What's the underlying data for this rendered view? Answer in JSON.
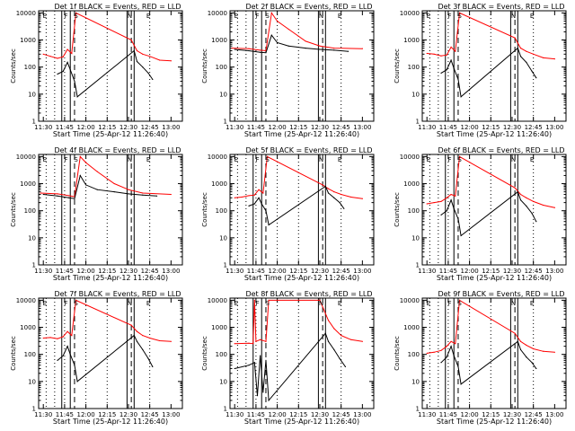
{
  "colors": {
    "events": "#000000",
    "lld": "#ff0000",
    "axes": "#000000"
  },
  "common": {
    "xlabel": "Start Time (25-Apr-12 11:26:40)",
    "ylabel": "Counts/sec",
    "x_ticks": [
      "11:30",
      "11:45",
      "12:00",
      "12:15",
      "12:30",
      "12:45",
      "13:00"
    ],
    "y_ticks": [
      "1",
      "10",
      "100",
      "1000",
      "10000"
    ],
    "xlim_minutes_after_1130": [
      -3.3,
      98
    ],
    "ylim": [
      1,
      12000
    ],
    "y_scale": "log",
    "solid_markers": [
      "11:43",
      "11:49",
      "12:29",
      "12:34"
    ],
    "dashed_markers": [
      "11:52",
      "12:32"
    ],
    "dotted_markers": [
      "11:32",
      "11:38",
      "11:45",
      "12:00",
      "12:15",
      "12:45"
    ],
    "interval_letters": [
      {
        "label": "E",
        "x": "11:31"
      },
      {
        "label": "F",
        "x": "11:46"
      },
      {
        "label": "S",
        "x": "11:53"
      },
      {
        "label": "N",
        "x": "12:31"
      },
      {
        "label": "E",
        "x": "12:44"
      }
    ]
  },
  "chart_data": [
    {
      "type": "line",
      "title": "Det 1f BLACK = Events, RED = LLD",
      "xlabel": "Start Time (25-Apr-12 11:26:40)",
      "ylabel": "Counts/sec",
      "y_scale": "log",
      "series": [
        {
          "name": "BLACK = Events",
          "x": [
            "11:40",
            "11:44",
            "11:47",
            "11:49",
            "11:52",
            "11:54",
            "12:34",
            "12:36",
            "12:40",
            "12:44",
            "12:47"
          ],
          "values": [
            55,
            70,
            150,
            80,
            30,
            8,
            400,
            160,
            100,
            60,
            35
          ]
        },
        {
          "name": "RED = LLD",
          "x": [
            "11:30",
            "11:35",
            "11:40",
            "11:44",
            "11:47",
            "11:50",
            "11:53",
            "12:32",
            "12:36",
            "12:40",
            "12:45",
            "12:52",
            "13:00"
          ],
          "values": [
            300,
            250,
            210,
            240,
            450,
            320,
            10000,
            1000,
            400,
            300,
            250,
            180,
            170
          ]
        }
      ]
    },
    {
      "type": "line",
      "title": "Det 2f BLACK = Events, RED = LLD",
      "xlabel": "Start Time (25-Apr-12 11:26:40)",
      "ylabel": "Counts/sec",
      "y_scale": "log",
      "series": [
        {
          "name": "BLACK = Events",
          "x": [
            "11:30",
            "11:40",
            "11:48",
            "11:52",
            "11:56",
            "12:00",
            "12:08",
            "12:20",
            "12:30",
            "12:40",
            "12:50"
          ],
          "values": [
            450,
            400,
            350,
            340,
            1500,
            800,
            600,
            500,
            450,
            420,
            380
          ]
        },
        {
          "name": "RED = LLD",
          "x": [
            "11:28",
            "11:40",
            "11:48",
            "11:52",
            "11:56",
            "12:00",
            "12:08",
            "12:20",
            "12:30",
            "12:40",
            "13:00"
          ],
          "values": [
            500,
            480,
            420,
            400,
            10000,
            5000,
            2500,
            900,
            600,
            500,
            480
          ]
        }
      ]
    },
    {
      "type": "line",
      "title": "Det 3f BLACK = Events, RED = LLD",
      "xlabel": "Start Time (25-Apr-12 11:26:40)",
      "ylabel": "Counts/sec",
      "y_scale": "log",
      "series": [
        {
          "name": "BLACK = Events",
          "x": [
            "11:40",
            "11:44",
            "11:47",
            "11:49",
            "11:52",
            "11:54",
            "12:34",
            "12:36",
            "12:40",
            "12:44",
            "12:47"
          ],
          "values": [
            60,
            80,
            180,
            90,
            35,
            8,
            500,
            250,
            150,
            70,
            40
          ]
        },
        {
          "name": "RED = LLD",
          "x": [
            "11:30",
            "11:35",
            "11:40",
            "11:44",
            "11:47",
            "11:50",
            "11:53",
            "12:32",
            "12:36",
            "12:40",
            "12:45",
            "12:52",
            "13:00"
          ],
          "values": [
            320,
            300,
            260,
            280,
            550,
            380,
            10000,
            1200,
            500,
            380,
            300,
            220,
            200
          ]
        }
      ]
    },
    {
      "type": "line",
      "title": "Det 4f BLACK = Events, RED = LLD",
      "xlabel": "Start Time (25-Apr-12 11:26:40)",
      "ylabel": "Counts/sec",
      "y_scale": "log",
      "series": [
        {
          "name": "BLACK = Events",
          "x": [
            "11:30",
            "11:40",
            "11:48",
            "11:52",
            "11:56",
            "12:00",
            "12:08",
            "12:20",
            "12:30",
            "12:40",
            "12:50"
          ],
          "values": [
            400,
            350,
            300,
            280,
            2000,
            900,
            600,
            500,
            420,
            380,
            350
          ]
        },
        {
          "name": "RED = LLD",
          "x": [
            "11:28",
            "11:40",
            "11:48",
            "11:52",
            "11:56",
            "12:00",
            "12:08",
            "12:20",
            "12:30",
            "12:40",
            "13:00"
          ],
          "values": [
            450,
            420,
            360,
            330,
            10000,
            6000,
            2800,
            1000,
            600,
            450,
            400
          ]
        }
      ]
    },
    {
      "type": "line",
      "title": "Det 5f BLACK = Events, RED = LLD",
      "xlabel": "Start Time (25-Apr-12 11:26:40)",
      "ylabel": "Counts/sec",
      "y_scale": "log",
      "series": [
        {
          "name": "BLACK = Events",
          "x": [
            "11:40",
            "11:44",
            "11:47",
            "11:49",
            "11:52",
            "11:54",
            "12:34",
            "12:36",
            "12:40",
            "12:44",
            "12:47"
          ],
          "values": [
            150,
            180,
            300,
            180,
            100,
            30,
            800,
            450,
            300,
            200,
            120
          ]
        },
        {
          "name": "RED = LLD",
          "x": [
            "11:30",
            "11:35",
            "11:40",
            "11:44",
            "11:47",
            "11:50",
            "11:53",
            "12:32",
            "12:36",
            "12:40",
            "12:45",
            "12:52",
            "13:00"
          ],
          "values": [
            300,
            320,
            360,
            380,
            600,
            450,
            10000,
            900,
            650,
            500,
            400,
            320,
            280
          ]
        }
      ]
    },
    {
      "type": "line",
      "title": "Det 6f BLACK = Events, RED = LLD",
      "xlabel": "Start Time (25-Apr-12 11:26:40)",
      "ylabel": "Counts/sec",
      "y_scale": "log",
      "series": [
        {
          "name": "BLACK = Events",
          "x": [
            "11:40",
            "11:44",
            "11:47",
            "11:49",
            "11:52",
            "11:54",
            "12:34",
            "12:36",
            "12:40",
            "12:44",
            "12:47"
          ],
          "values": [
            70,
            100,
            250,
            120,
            50,
            12,
            500,
            250,
            150,
            80,
            40
          ]
        },
        {
          "name": "RED = LLD",
          "x": [
            "11:30",
            "11:35",
            "11:40",
            "11:44",
            "11:47",
            "11:50",
            "11:53",
            "12:32",
            "12:36",
            "12:40",
            "12:45",
            "12:52",
            "13:00"
          ],
          "values": [
            180,
            200,
            220,
            300,
            400,
            350,
            10000,
            700,
            400,
            300,
            220,
            160,
            130
          ]
        }
      ]
    },
    {
      "type": "line",
      "title": "Det 7f BLACK = Events, RED = LLD",
      "xlabel": "Start Time (25-Apr-12 11:26:40)",
      "ylabel": "Counts/sec",
      "y_scale": "log",
      "series": [
        {
          "name": "BLACK = Events",
          "x": [
            "11:40",
            "11:44",
            "11:47",
            "11:49",
            "11:52",
            "11:54",
            "12:34",
            "12:36",
            "12:40",
            "12:44",
            "12:47"
          ],
          "values": [
            60,
            90,
            200,
            100,
            40,
            10,
            500,
            300,
            150,
            70,
            35
          ]
        },
        {
          "name": "RED = LLD",
          "x": [
            "11:30",
            "11:35",
            "11:40",
            "11:44",
            "11:47",
            "11:50",
            "11:53",
            "12:32",
            "12:36",
            "12:40",
            "12:45",
            "12:52",
            "13:00"
          ],
          "values": [
            400,
            420,
            380,
            450,
            700,
            500,
            10000,
            1200,
            700,
            500,
            400,
            320,
            300
          ]
        }
      ]
    },
    {
      "type": "line",
      "title": "Det 8f BLACK = Events, RED = LLD",
      "xlabel": "Start Time (25-Apr-12 11:26:40)",
      "ylabel": "Counts/sec",
      "y_scale": "log",
      "series": [
        {
          "name": "BLACK = Events",
          "x": [
            "11:30",
            "11:40",
            "11:44",
            "11:46",
            "11:48",
            "11:50",
            "11:52",
            "11:54",
            "12:34",
            "12:36",
            "12:40",
            "12:44",
            "12:48"
          ],
          "values": [
            30,
            40,
            50,
            3,
            90,
            4,
            60,
            2,
            600,
            300,
            150,
            70,
            35
          ]
        },
        {
          "name": "RED = LLD",
          "x": [
            "11:30",
            "11:40",
            "11:43",
            "11:44",
            "11:45",
            "11:48",
            "11:52",
            "11:54",
            "12:30",
            "12:36",
            "12:40",
            "12:45",
            "12:52",
            "13:00"
          ],
          "values": [
            250,
            260,
            250,
            10000,
            300,
            350,
            300,
            10000,
            10000,
            1800,
            900,
            500,
            350,
            300
          ]
        }
      ]
    },
    {
      "type": "line",
      "title": "Det 9f BLACK = Events, RED = LLD",
      "xlabel": "Start Time (25-Apr-12 11:26:40)",
      "ylabel": "Counts/sec",
      "y_scale": "log",
      "series": [
        {
          "name": "BLACK = Events",
          "x": [
            "11:40",
            "11:44",
            "11:47",
            "11:49",
            "11:52",
            "11:54",
            "12:34",
            "12:36",
            "12:40",
            "12:44",
            "12:47"
          ],
          "values": [
            50,
            80,
            200,
            90,
            35,
            8,
            300,
            150,
            80,
            50,
            30
          ]
        },
        {
          "name": "RED = LLD",
          "x": [
            "11:30",
            "11:35",
            "11:40",
            "11:44",
            "11:47",
            "11:50",
            "11:53",
            "12:32",
            "12:36",
            "12:40",
            "12:45",
            "12:52",
            "13:00"
          ],
          "values": [
            110,
            120,
            140,
            200,
            300,
            250,
            10000,
            600,
            300,
            220,
            160,
            130,
            120
          ]
        }
      ]
    }
  ]
}
